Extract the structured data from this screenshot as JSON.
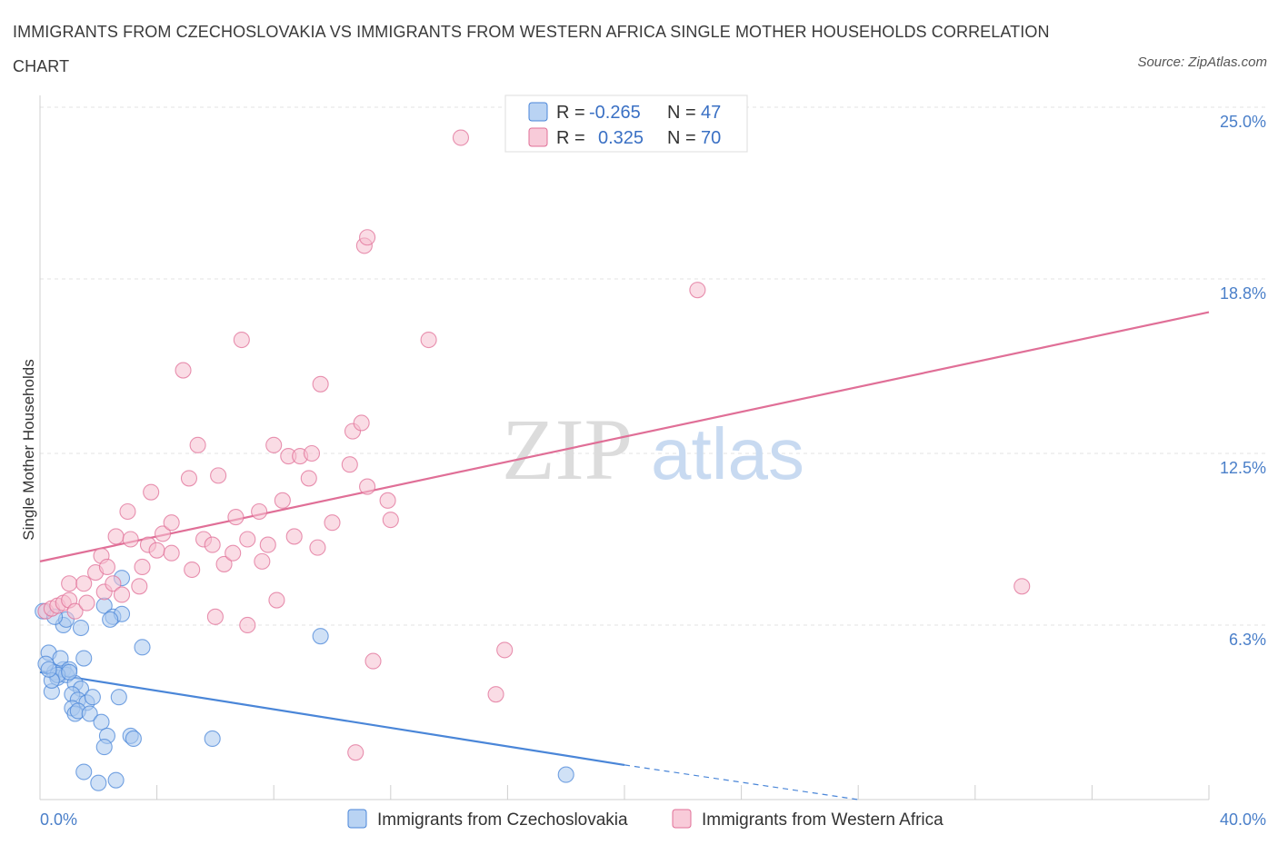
{
  "title": "IMMIGRANTS FROM CZECHOSLOVAKIA VS IMMIGRANTS FROM WESTERN AFRICA SINGLE MOTHER HOUSEHOLDS CORRELATION CHART",
  "source": "Source: ZipAtlas.com",
  "watermark": {
    "zip": "ZIP",
    "atlas": "atlas"
  },
  "colors": {
    "blue": "#4a86d8",
    "blue_fill": "#aac8ee",
    "pink": "#e06f97",
    "pink_fill": "#f6bfd0",
    "axis_label": "#4a7fc9",
    "grid": "#e3e3e3"
  },
  "chart_data": {
    "type": "scatter",
    "title": "IMMIGRANTS FROM CZECHOSLOVAKIA VS IMMIGRANTS FROM WESTERN AFRICA SINGLE MOTHER HOUSEHOLDS CORRELATION CHART",
    "xlabel": "",
    "ylabel": "Single Mother Households",
    "xlim": [
      0,
      40
    ],
    "ylim": [
      0,
      25
    ],
    "x_tick_labels": [
      "0.0%",
      "40.0%"
    ],
    "y_ticks": [
      6.3,
      12.5,
      18.8,
      25.0
    ],
    "y_tick_labels": [
      "6.3%",
      "12.5%",
      "18.8%",
      "25.0%"
    ],
    "grid": true,
    "legend_placement": "top-center",
    "legend": [
      {
        "r_label": "R =",
        "r_value": "-0.265",
        "n_label": "N =",
        "n_value": "47"
      },
      {
        "r_label": "R =",
        "r_value": "0.325",
        "n_label": "N =",
        "n_value": "70"
      }
    ],
    "series": [
      {
        "name": "Immigrants from Czechoslovakia",
        "color": "#4a86d8",
        "trend": {
          "x": [
            0,
            20
          ],
          "y": [
            4.6,
            1.25
          ],
          "dashed_to": [
            28,
            0
          ]
        },
        "points": [
          [
            0.1,
            6.8
          ],
          [
            0.3,
            5.3
          ],
          [
            0.5,
            4.6
          ],
          [
            0.6,
            4.4
          ],
          [
            0.4,
            3.9
          ],
          [
            0.8,
            4.7
          ],
          [
            0.9,
            4.5
          ],
          [
            0.7,
            5.1
          ],
          [
            1.0,
            4.7
          ],
          [
            0.8,
            6.3
          ],
          [
            0.9,
            6.5
          ],
          [
            1.4,
            6.2
          ],
          [
            1.5,
            5.1
          ],
          [
            1.2,
            4.2
          ],
          [
            1.4,
            4.0
          ],
          [
            1.1,
            3.8
          ],
          [
            1.3,
            3.6
          ],
          [
            1.6,
            3.5
          ],
          [
            1.8,
            3.7
          ],
          [
            1.1,
            3.3
          ],
          [
            1.2,
            3.1
          ],
          [
            1.3,
            3.2
          ],
          [
            1.7,
            3.1
          ],
          [
            2.1,
            2.8
          ],
          [
            2.3,
            2.3
          ],
          [
            2.2,
            1.9
          ],
          [
            1.5,
            1.0
          ],
          [
            2.0,
            0.6
          ],
          [
            2.6,
            0.7
          ],
          [
            2.7,
            3.7
          ],
          [
            3.1,
            2.3
          ],
          [
            3.2,
            2.2
          ],
          [
            2.2,
            7.0
          ],
          [
            2.5,
            6.6
          ],
          [
            2.8,
            6.7
          ],
          [
            2.8,
            8.0
          ],
          [
            3.5,
            5.5
          ],
          [
            5.9,
            2.2
          ],
          [
            9.6,
            5.9
          ],
          [
            18.0,
            0.9
          ],
          [
            0.2,
            4.9
          ],
          [
            0.6,
            4.5
          ],
          [
            0.4,
            4.3
          ],
          [
            1.0,
            4.6
          ],
          [
            0.3,
            4.7
          ],
          [
            2.4,
            6.5
          ],
          [
            0.5,
            6.6
          ]
        ]
      },
      {
        "name": "Immigrants from Western Africa",
        "color": "#e06f97",
        "trend": {
          "x": [
            0,
            40
          ],
          "y": [
            8.6,
            17.6
          ]
        },
        "points": [
          [
            0.2,
            6.8
          ],
          [
            0.4,
            6.9
          ],
          [
            0.6,
            7.0
          ],
          [
            0.8,
            7.1
          ],
          [
            1.0,
            7.2
          ],
          [
            1.2,
            6.8
          ],
          [
            1.0,
            7.8
          ],
          [
            1.5,
            7.8
          ],
          [
            1.9,
            8.2
          ],
          [
            2.1,
            8.8
          ],
          [
            2.3,
            8.4
          ],
          [
            2.2,
            7.5
          ],
          [
            1.6,
            7.1
          ],
          [
            2.5,
            7.8
          ],
          [
            2.8,
            7.4
          ],
          [
            3.4,
            7.7
          ],
          [
            2.6,
            9.5
          ],
          [
            3.1,
            9.4
          ],
          [
            3.0,
            10.4
          ],
          [
            3.5,
            8.4
          ],
          [
            3.7,
            9.2
          ],
          [
            4.0,
            9.0
          ],
          [
            3.8,
            11.1
          ],
          [
            4.2,
            9.6
          ],
          [
            4.5,
            10.0
          ],
          [
            4.5,
            8.9
          ],
          [
            4.9,
            15.5
          ],
          [
            5.1,
            11.6
          ],
          [
            5.2,
            8.3
          ],
          [
            5.4,
            12.8
          ],
          [
            5.6,
            9.4
          ],
          [
            5.9,
            9.2
          ],
          [
            6.0,
            6.6
          ],
          [
            6.1,
            11.7
          ],
          [
            6.3,
            8.5
          ],
          [
            6.6,
            8.9
          ],
          [
            6.7,
            10.2
          ],
          [
            6.9,
            16.6
          ],
          [
            7.1,
            9.4
          ],
          [
            7.1,
            6.3
          ],
          [
            7.5,
            10.4
          ],
          [
            7.6,
            8.6
          ],
          [
            7.8,
            9.2
          ],
          [
            8.0,
            12.8
          ],
          [
            8.1,
            7.2
          ],
          [
            8.3,
            10.8
          ],
          [
            8.5,
            12.4
          ],
          [
            8.9,
            12.4
          ],
          [
            8.7,
            9.5
          ],
          [
            9.2,
            11.6
          ],
          [
            9.3,
            12.5
          ],
          [
            9.5,
            9.1
          ],
          [
            9.6,
            15.0
          ],
          [
            10.0,
            10.0
          ],
          [
            10.6,
            12.1
          ],
          [
            10.7,
            13.3
          ],
          [
            11.0,
            13.6
          ],
          [
            11.2,
            11.3
          ],
          [
            11.9,
            10.8
          ],
          [
            12.0,
            10.1
          ],
          [
            13.3,
            16.6
          ],
          [
            14.4,
            23.9
          ],
          [
            11.4,
            5.0
          ],
          [
            11.1,
            20.0
          ],
          [
            11.2,
            20.3
          ],
          [
            15.6,
            3.8
          ],
          [
            15.9,
            5.4
          ],
          [
            10.8,
            1.7
          ],
          [
            22.5,
            18.4
          ],
          [
            33.6,
            7.7
          ]
        ]
      }
    ]
  },
  "bottom_legend": [
    {
      "label": "Immigrants from Czechoslovakia"
    },
    {
      "label": "Immigrants from Western Africa"
    }
  ]
}
